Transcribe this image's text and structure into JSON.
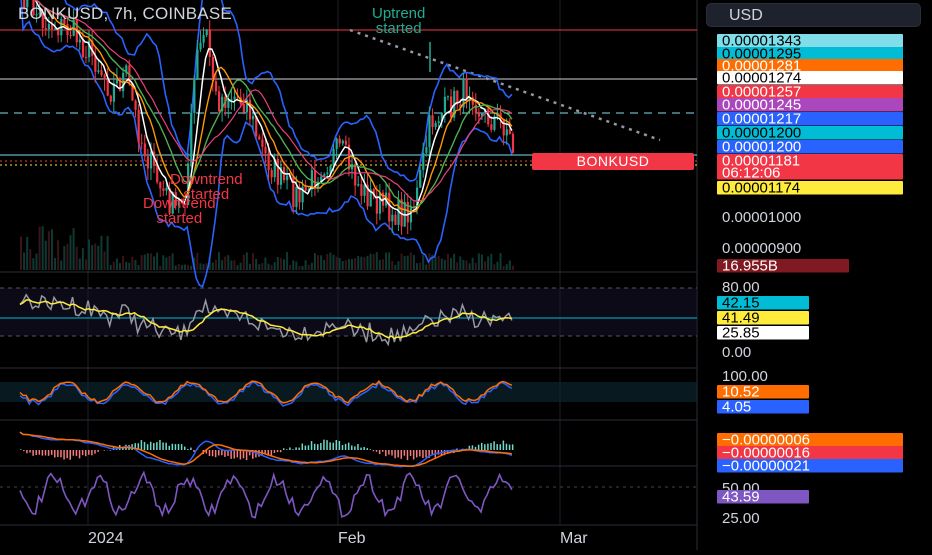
{
  "header": {
    "title": "BONKUSD, 7h, COINBASE",
    "currency_button": "USD",
    "symbol_tag": "BONKUSD",
    "annotations": {
      "uptrend": [
        "Uptrend",
        "started"
      ],
      "downtrend1": [
        "Downtrend",
        "started"
      ],
      "downtrend2": [
        "Downtrend",
        "started"
      ]
    }
  },
  "colors": {
    "up": "#22ab94",
    "down": "#f23645",
    "bb": "#2962ff",
    "ma_white": "#ffffff",
    "ma_orange": "#ff9800",
    "ma_green": "#4caf50",
    "rsi_gray": "#9598a1",
    "rsi_yellow": "#ffeb3b",
    "stoch_orange": "#ff6d00",
    "stoch_blue": "#2962ff",
    "rsi2_purple": "#7e57c2"
  },
  "chart_data": {
    "type": "candlestick",
    "x_labels": [
      "2024",
      "Feb",
      "Mar"
    ],
    "price_axis": {
      "ticks": [
        "0.00001000",
        "0.00000900"
      ],
      "labels": [
        {
          "text": "0.00001343",
          "color": "#80deea",
          "textcolor": "#000"
        },
        {
          "text": "0.00001295",
          "color": "#00bcd4",
          "textcolor": "#000"
        },
        {
          "text": "0.00001281",
          "color": "#ff6d00",
          "textcolor": "#fff"
        },
        {
          "text": "0.00001274",
          "color": "#ffffff",
          "textcolor": "#000"
        },
        {
          "text": "0.00001257",
          "color": "#f23645",
          "textcolor": "#fff"
        },
        {
          "text": "0.00001245",
          "color": "#ab47bc",
          "textcolor": "#fff"
        },
        {
          "text": "0.00001217",
          "color": "#2962ff",
          "textcolor": "#fff"
        },
        {
          "text": "0.00001200",
          "color": "#00bcd4",
          "textcolor": "#000"
        },
        {
          "text": "0.00001200",
          "color": "#2962ff",
          "textcolor": "#fff"
        },
        {
          "text": "0.00001181",
          "color": "#f23645",
          "textcolor": "#fff"
        },
        {
          "text": "06:12:06",
          "color": "#f23645",
          "textcolor": "#fff"
        },
        {
          "text": "0.00001174",
          "color": "#ffeb3b",
          "textcolor": "#000"
        }
      ]
    },
    "volume_label": {
      "text": "16.955B",
      "color": "#801922"
    },
    "rsi_pane": {
      "ticks": [
        "80.00",
        "0.00"
      ],
      "labels": [
        {
          "text": "42.15",
          "color": "#00bcd4",
          "textcolor": "#000"
        },
        {
          "text": "41.49",
          "color": "#ffeb3b",
          "textcolor": "#000"
        },
        {
          "text": "25.85",
          "color": "#ffffff",
          "textcolor": "#000"
        }
      ]
    },
    "stoch_pane": {
      "ticks": [
        "100.00"
      ],
      "labels": [
        {
          "text": "10.52",
          "color": "#ff6d00",
          "textcolor": "#fff"
        },
        {
          "text": "4.05",
          "color": "#2962ff",
          "textcolor": "#fff"
        }
      ]
    },
    "macd_pane": {
      "labels": [
        {
          "text": "−0.00000006",
          "color": "#ff6d00",
          "textcolor": "#fff"
        },
        {
          "text": "−0.00000016",
          "color": "#f23645",
          "textcolor": "#fff"
        },
        {
          "text": "−0.00000021",
          "color": "#2962ff",
          "textcolor": "#fff"
        }
      ]
    },
    "rsi2_pane": {
      "ticks": [
        "50.00",
        "25.00"
      ],
      "labels": [
        {
          "text": "43.59",
          "color": "#7e57c2",
          "textcolor": "#fff"
        }
      ]
    }
  }
}
